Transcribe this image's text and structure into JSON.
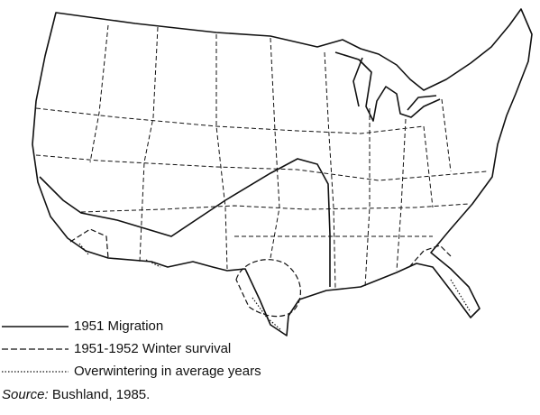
{
  "legend": {
    "items": [
      {
        "label": "1951 Migration"
      },
      {
        "label": "1951-1952 Winter survival"
      },
      {
        "label": "Overwintering in average years"
      }
    ]
  },
  "source": {
    "label": "Source:",
    "text": "Bushland, 1985."
  }
}
